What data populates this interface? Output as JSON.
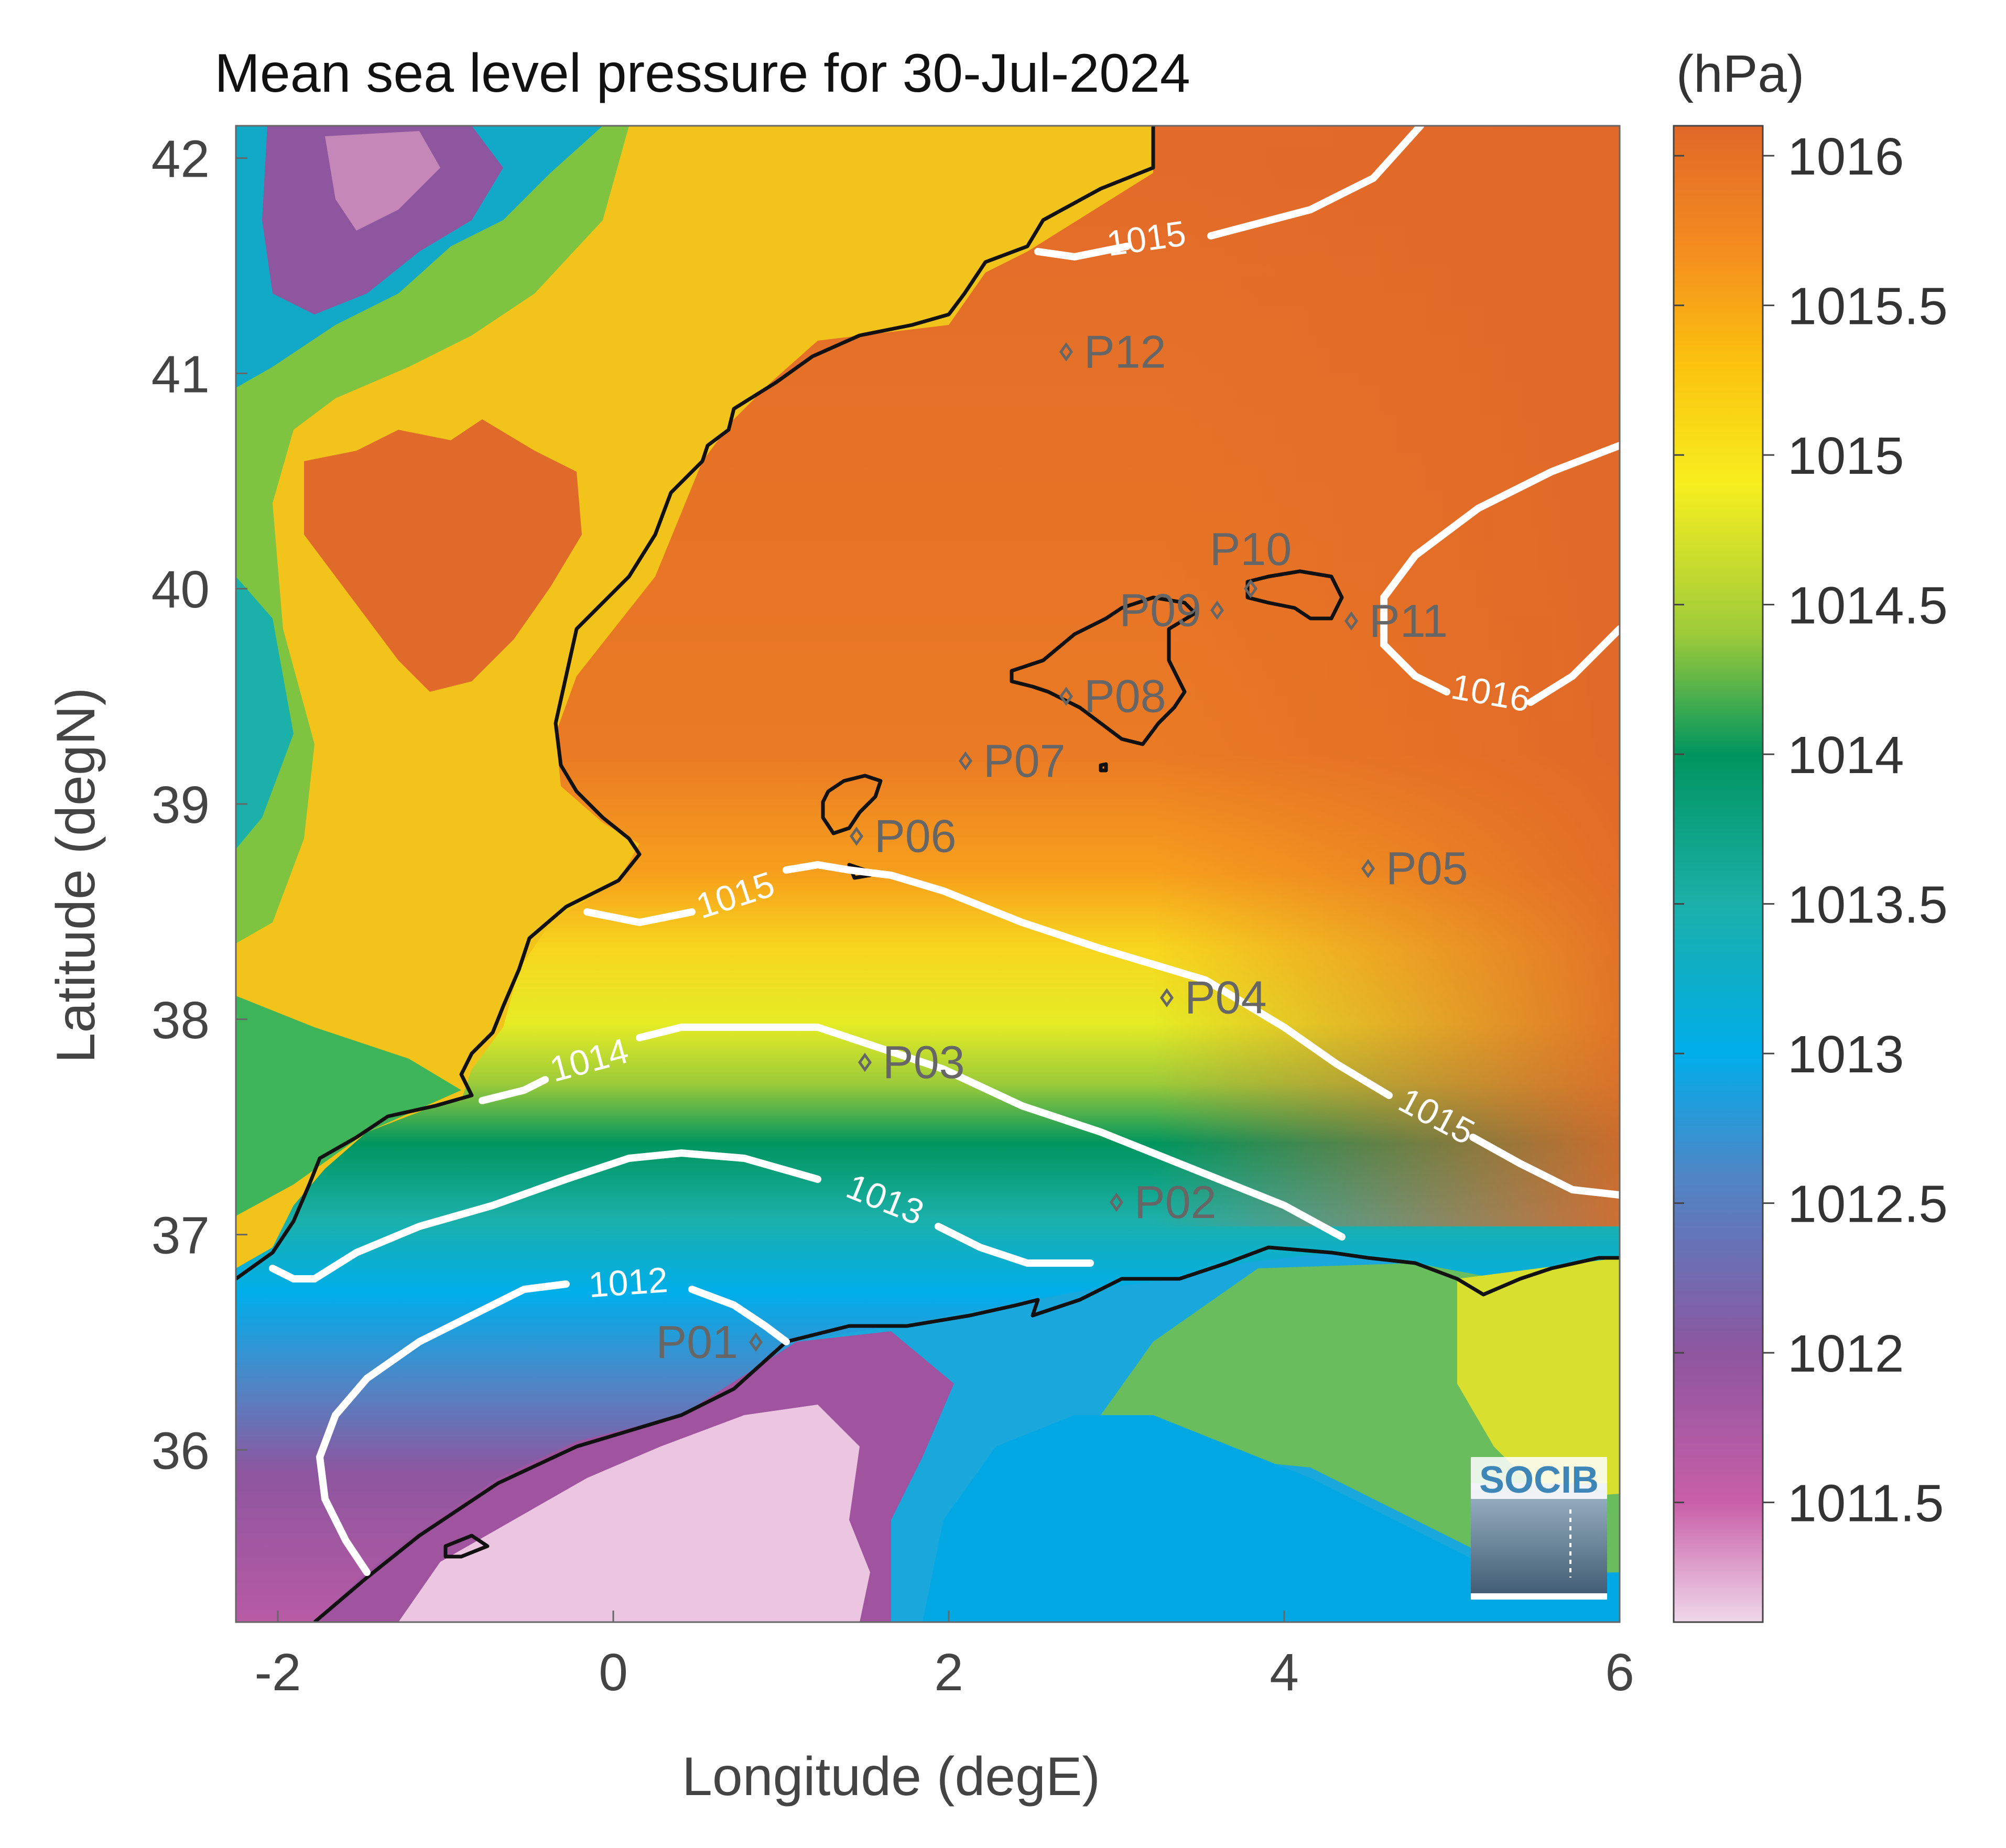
{
  "title": "Mean sea level pressure for 30-Jul-2024",
  "units": "(hPa)",
  "xlabel": "Longitude (degE)",
  "ylabel": "Latitude (degN)",
  "xlim": [
    -2.25,
    6
  ],
  "ylim": [
    35.2,
    42.15
  ],
  "x_ticks": [
    "-2",
    "0",
    "2",
    "4",
    "6"
  ],
  "x_tick_values": [
    -2,
    0,
    2,
    4,
    6
  ],
  "y_ticks": [
    "42",
    "41",
    "40",
    "39",
    "38",
    "37",
    "36"
  ],
  "y_tick_values": [
    42,
    41,
    40,
    39,
    38,
    37,
    36
  ],
  "colorbar": {
    "min": 1011.1,
    "max": 1016.1,
    "ticks": [
      "1016",
      "1015.5",
      "1015",
      "1014.5",
      "1014",
      "1013.5",
      "1013",
      "1012.5",
      "1012",
      "1011.5"
    ],
    "tick_values": [
      1016,
      1015.5,
      1015,
      1014.5,
      1014,
      1013.5,
      1013,
      1012.5,
      1012,
      1011.5
    ],
    "colors": [
      "#f0d8ea",
      "#c85fa8",
      "#8d569f",
      "#4e86c6",
      "#00aeea",
      "#1bb0a9",
      "#00955e",
      "#9ccb3a",
      "#f7ef1f",
      "#fbc30e",
      "#f48b20",
      "#e06828"
    ]
  },
  "contour_labels": [
    "1015",
    "1016",
    "1015",
    "1014",
    "1015",
    "1013",
    "1012"
  ],
  "points": [
    {
      "label": "P01",
      "lon": 0.85,
      "lat": 36.5
    },
    {
      "label": "P02",
      "lon": 3.0,
      "lat": 37.15
    },
    {
      "label": "P03",
      "lon": 1.5,
      "lat": 37.8
    },
    {
      "label": "P04",
      "lon": 3.3,
      "lat": 38.1
    },
    {
      "label": "P05",
      "lon": 4.5,
      "lat": 38.7
    },
    {
      "label": "P06",
      "lon": 1.45,
      "lat": 38.85
    },
    {
      "label": "P07",
      "lon": 2.1,
      "lat": 39.2
    },
    {
      "label": "P08",
      "lon": 2.7,
      "lat": 39.5
    },
    {
      "label": "P09",
      "lon": 3.6,
      "lat": 39.9
    },
    {
      "label": "P10",
      "lon": 3.8,
      "lat": 40.0
    },
    {
      "label": "P11",
      "lon": 4.4,
      "lat": 39.85
    },
    {
      "label": "P12",
      "lon": 2.7,
      "lat": 41.1
    }
  ],
  "logo_text": "SOCIB"
}
